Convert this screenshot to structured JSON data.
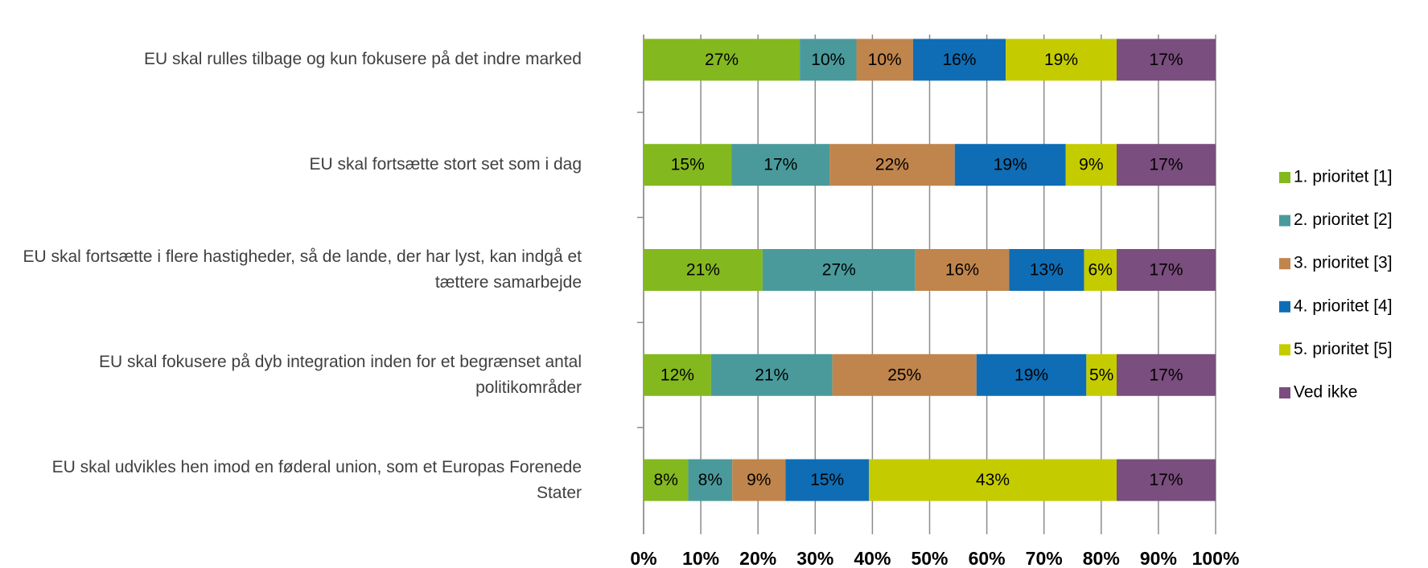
{
  "chart_data": {
    "type": "stacked_barh",
    "categories": [
      "EU skal rulles tilbage og kun fokusere på det indre marked",
      "EU skal fortsætte stort set som i dag",
      "EU skal fortsætte i flere hastigheder, så de lande, der har lyst, kan indgå et tættere samarbejde",
      "EU skal fokusere på dyb integration inden for et begrænset antal politikområder",
      "EU skal udvikles hen imod en føderal union, som et Europas Forenede Stater"
    ],
    "series": [
      {
        "name": "1. prioritet [1]",
        "color": "#84b81f",
        "values": [
          27.3,
          15.4,
          20.8,
          11.8,
          7.8
        ],
        "value_labels": [
          "27%",
          "15%",
          "21%",
          "12%",
          "8%"
        ]
      },
      {
        "name": "2. prioritet [2]",
        "color": "#4a9a9c",
        "values": [
          9.9,
          17.1,
          26.7,
          21.2,
          7.7
        ],
        "value_labels": [
          "10%",
          "17%",
          "27%",
          "21%",
          "8%"
        ]
      },
      {
        "name": "3. prioritet [3]",
        "color": "#c0854c",
        "values": [
          9.9,
          21.9,
          16.4,
          25.2,
          9.3
        ],
        "value_labels": [
          "10%",
          "22%",
          "16%",
          "25%",
          "9%"
        ]
      },
      {
        "name": "4. prioritet [4]",
        "color": "#0f6db5",
        "values": [
          16.2,
          19.4,
          13.1,
          19.2,
          14.6
        ],
        "value_labels": [
          "16%",
          "19%",
          "13%",
          "19%",
          "15%"
        ]
      },
      {
        "name": "5. prioritet [5]",
        "color": "#c4cc00",
        "values": [
          19.4,
          8.9,
          5.7,
          5.3,
          43.3
        ],
        "value_labels": [
          "19%",
          "9%",
          "6%",
          "5%",
          "43%"
        ]
      },
      {
        "name": "Ved ikke",
        "color": "#7a4e7e",
        "values": [
          17.3,
          17.3,
          17.3,
          17.3,
          17.3
        ],
        "value_labels": [
          "17%",
          "17%",
          "17%",
          "17%",
          "17%"
        ]
      }
    ],
    "xlim": [
      0,
      100
    ],
    "xticks": [
      {
        "value": 0,
        "label": "0%"
      },
      {
        "value": 10,
        "label": "10%"
      },
      {
        "value": 20,
        "label": "20%"
      },
      {
        "value": 30,
        "label": "30%"
      },
      {
        "value": 40,
        "label": "40%"
      },
      {
        "value": 50,
        "label": "50%"
      },
      {
        "value": 60,
        "label": "60%"
      },
      {
        "value": 70,
        "label": "70%"
      },
      {
        "value": 80,
        "label": "80%"
      },
      {
        "value": 90,
        "label": "90%"
      },
      {
        "value": 100,
        "label": "100%"
      }
    ],
    "grid": true,
    "legend": "right"
  }
}
